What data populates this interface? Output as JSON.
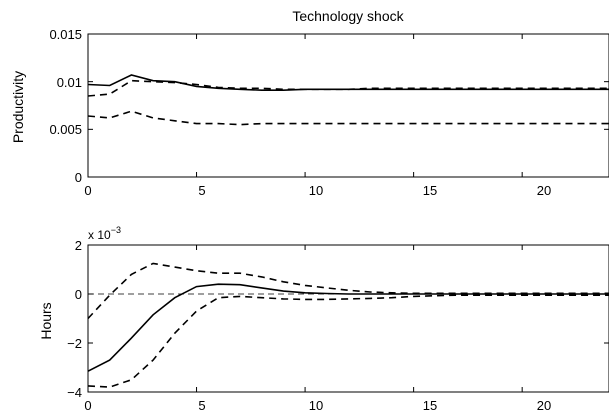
{
  "chart_data": [
    {
      "type": "line",
      "title": "Technology shock",
      "xlabel": "",
      "ylabel": "Productivity",
      "xlim": [
        0,
        24
      ],
      "ylim": [
        0,
        0.015
      ],
      "xticks": [
        0,
        5,
        10,
        15,
        20
      ],
      "xtick_labels": [
        "0",
        "5",
        "10",
        "15",
        "20"
      ],
      "yticks": [
        0,
        0.005,
        0.01,
        0.015
      ],
      "ytick_labels": [
        "0",
        "0.005",
        "0.01",
        "0.015"
      ],
      "grid": false,
      "reference_line": null,
      "x": [
        0,
        1,
        2,
        3,
        4,
        5,
        6,
        7,
        8,
        9,
        10,
        11,
        12,
        13,
        14,
        15,
        16,
        17,
        18,
        19,
        20,
        21,
        22,
        23,
        24
      ],
      "series": [
        {
          "style": "solid",
          "values": [
            0.0097,
            0.0096,
            0.0107,
            0.0101,
            0.01,
            0.0095,
            0.0093,
            0.0092,
            0.0091,
            0.0091,
            0.0092,
            0.0092,
            0.0092,
            0.0092,
            0.0092,
            0.0092,
            0.0092,
            0.0092,
            0.0092,
            0.0092,
            0.0092,
            0.0092,
            0.0092,
            0.0092,
            0.0092
          ]
        },
        {
          "style": "dashed",
          "values": [
            0.0085,
            0.0087,
            0.0101,
            0.01,
            0.0099,
            0.0097,
            0.0094,
            0.0093,
            0.0093,
            0.0092,
            0.0092,
            0.0092,
            0.0092,
            0.0093,
            0.0093,
            0.0093,
            0.0093,
            0.0093,
            0.0093,
            0.0093,
            0.0093,
            0.0093,
            0.0093,
            0.0093,
            0.0093
          ]
        },
        {
          "style": "dashed",
          "values": [
            0.0064,
            0.0062,
            0.0069,
            0.0062,
            0.0059,
            0.0056,
            0.0056,
            0.0055,
            0.0056,
            0.0056,
            0.0056,
            0.0056,
            0.0056,
            0.0056,
            0.0056,
            0.0056,
            0.0056,
            0.0056,
            0.0056,
            0.0056,
            0.0056,
            0.0056,
            0.0056,
            0.0056,
            0.0056
          ]
        }
      ]
    },
    {
      "type": "line",
      "title": "",
      "xlabel": "",
      "ylabel": "Hours",
      "y_exponent_label": "x 10",
      "y_exponent": "−3",
      "xlim": [
        0,
        24
      ],
      "ylim": [
        -4,
        2
      ],
      "xticks": [
        0,
        5,
        10,
        15,
        20
      ],
      "xtick_labels": [
        "0",
        "5",
        "10",
        "15",
        "20"
      ],
      "yticks": [
        -4,
        -2,
        0,
        2
      ],
      "ytick_labels": [
        "−4",
        "−2",
        "0",
        "2"
      ],
      "grid": false,
      "reference_line": 0,
      "x": [
        0,
        1,
        2,
        3,
        4,
        5,
        6,
        7,
        8,
        9,
        10,
        11,
        12,
        13,
        14,
        15,
        16,
        17,
        18,
        19,
        20,
        21,
        22,
        23,
        24
      ],
      "series": [
        {
          "style": "solid",
          "values": [
            -3.15,
            -2.7,
            -1.8,
            -0.85,
            -0.15,
            0.3,
            0.4,
            0.38,
            0.25,
            0.12,
            0.05,
            0.02,
            0.0,
            0.0,
            0.0,
            0.0,
            0.0,
            0.0,
            0.0,
            0.0,
            0.0,
            0.0,
            0.0,
            0.0,
            0.0
          ]
        },
        {
          "style": "dashed",
          "values": [
            -1.0,
            -0.05,
            0.8,
            1.25,
            1.1,
            0.95,
            0.85,
            0.85,
            0.7,
            0.5,
            0.35,
            0.25,
            0.15,
            0.08,
            0.05,
            0.03,
            0.03,
            0.03,
            0.03,
            0.03,
            0.03,
            0.03,
            0.03,
            0.03,
            0.03
          ]
        },
        {
          "style": "dashed",
          "values": [
            -3.75,
            -3.8,
            -3.5,
            -2.7,
            -1.6,
            -0.7,
            -0.15,
            -0.1,
            -0.15,
            -0.2,
            -0.22,
            -0.22,
            -0.2,
            -0.18,
            -0.15,
            -0.1,
            -0.07,
            -0.05,
            -0.05,
            -0.05,
            -0.05,
            -0.05,
            -0.05,
            -0.05,
            -0.05
          ]
        }
      ]
    }
  ]
}
